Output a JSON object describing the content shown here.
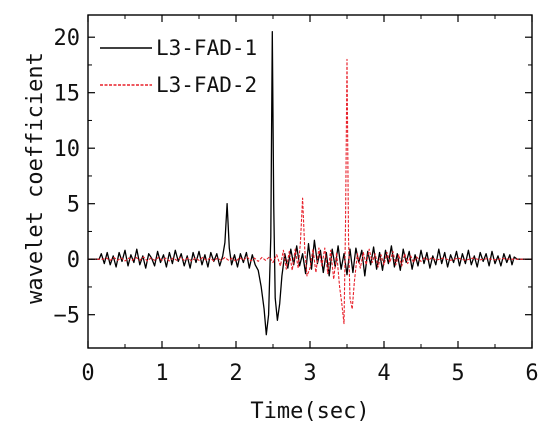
{
  "chart_data": {
    "type": "line",
    "title": "",
    "xlabel": "Time(sec)",
    "ylabel": "wavelet coefficient",
    "xlim": [
      0,
      6
    ],
    "ylim": [
      -8,
      22
    ],
    "xticks": [
      0,
      1,
      2,
      3,
      4,
      5,
      6
    ],
    "yticks": [
      -5,
      0,
      5,
      10,
      15,
      20
    ],
    "ytick_labels": [
      "−5",
      "0",
      "5",
      "10",
      "15",
      "20"
    ],
    "grid": false,
    "legend_position": "top-left",
    "series": [
      {
        "name": "L3-FAD-1",
        "color": "#000000",
        "style": "solid",
        "points": [
          [
            0.0,
            0.0
          ],
          [
            0.15,
            0.0
          ],
          [
            0.18,
            0.5
          ],
          [
            0.22,
            -0.4
          ],
          [
            0.26,
            0.6
          ],
          [
            0.3,
            -0.5
          ],
          [
            0.34,
            0.3
          ],
          [
            0.38,
            -0.7
          ],
          [
            0.42,
            0.6
          ],
          [
            0.46,
            -0.2
          ],
          [
            0.5,
            0.8
          ],
          [
            0.54,
            -0.6
          ],
          [
            0.58,
            0.4
          ],
          [
            0.62,
            -0.3
          ],
          [
            0.66,
            0.9
          ],
          [
            0.7,
            -0.5
          ],
          [
            0.74,
            0.3
          ],
          [
            0.78,
            -0.8
          ],
          [
            0.82,
            0.5
          ],
          [
            0.86,
            0.1
          ],
          [
            0.9,
            -0.6
          ],
          [
            0.94,
            0.7
          ],
          [
            0.98,
            -0.3
          ],
          [
            1.02,
            0.4
          ],
          [
            1.06,
            -0.7
          ],
          [
            1.1,
            0.6
          ],
          [
            1.14,
            -0.4
          ],
          [
            1.18,
            0.8
          ],
          [
            1.22,
            -0.2
          ],
          [
            1.26,
            0.5
          ],
          [
            1.3,
            -0.6
          ],
          [
            1.34,
            0.3
          ],
          [
            1.38,
            -0.8
          ],
          [
            1.42,
            0.6
          ],
          [
            1.46,
            -0.3
          ],
          [
            1.5,
            0.7
          ],
          [
            1.54,
            -0.5
          ],
          [
            1.58,
            0.4
          ],
          [
            1.62,
            -0.7
          ],
          [
            1.66,
            0.6
          ],
          [
            1.7,
            -0.2
          ],
          [
            1.74,
            0.5
          ],
          [
            1.78,
            -0.6
          ],
          [
            1.82,
            0.3
          ],
          [
            1.85,
            1.5
          ],
          [
            1.88,
            5.0
          ],
          [
            1.91,
            1.0
          ],
          [
            1.94,
            -0.5
          ],
          [
            1.98,
            0.4
          ],
          [
            2.02,
            -0.7
          ],
          [
            2.06,
            0.5
          ],
          [
            2.1,
            -0.3
          ],
          [
            2.14,
            0.6
          ],
          [
            2.18,
            -0.8
          ],
          [
            2.22,
            0.4
          ],
          [
            2.26,
            -0.5
          ],
          [
            2.3,
            -1.0
          ],
          [
            2.34,
            -2.5
          ],
          [
            2.38,
            -4.5
          ],
          [
            2.41,
            -6.8
          ],
          [
            2.44,
            -5.0
          ],
          [
            2.47,
            2.0
          ],
          [
            2.49,
            20.5
          ],
          [
            2.51,
            5.0
          ],
          [
            2.53,
            -3.5
          ],
          [
            2.56,
            -5.5
          ],
          [
            2.59,
            -4.0
          ],
          [
            2.62,
            -1.5
          ],
          [
            2.66,
            0.5
          ],
          [
            2.7,
            -0.8
          ],
          [
            2.74,
            0.9
          ],
          [
            2.78,
            -0.5
          ],
          [
            2.82,
            1.2
          ],
          [
            2.86,
            -0.6
          ],
          [
            2.9,
            0.5
          ],
          [
            2.94,
            -1.3
          ],
          [
            2.98,
            1.4
          ],
          [
            3.02,
            -0.9
          ],
          [
            3.06,
            1.7
          ],
          [
            3.1,
            -0.4
          ],
          [
            3.14,
            0.8
          ],
          [
            3.18,
            -1.2
          ],
          [
            3.22,
            0.6
          ],
          [
            3.26,
            -1.5
          ],
          [
            3.3,
            0.9
          ],
          [
            3.34,
            -0.7
          ],
          [
            3.38,
            1.2
          ],
          [
            3.42,
            -0.9
          ],
          [
            3.46,
            0.5
          ],
          [
            3.5,
            -1.4
          ],
          [
            3.54,
            0.9
          ],
          [
            3.58,
            -1.2
          ],
          [
            3.62,
            1.0
          ],
          [
            3.66,
            -0.3
          ],
          [
            3.7,
            0.8
          ],
          [
            3.74,
            -1.5
          ],
          [
            3.78,
            0.7
          ],
          [
            3.82,
            -0.5
          ],
          [
            3.86,
            1.1
          ],
          [
            3.9,
            -0.9
          ],
          [
            3.94,
            0.6
          ],
          [
            3.98,
            -1.0
          ],
          [
            4.02,
            0.8
          ],
          [
            4.06,
            -0.4
          ],
          [
            4.1,
            1.2
          ],
          [
            4.14,
            -0.7
          ],
          [
            4.18,
            0.5
          ],
          [
            4.22,
            -1.0
          ],
          [
            4.26,
            0.9
          ],
          [
            4.3,
            -0.3
          ],
          [
            4.34,
            0.7
          ],
          [
            4.38,
            -0.9
          ],
          [
            4.42,
            0.4
          ],
          [
            4.46,
            -0.6
          ],
          [
            4.5,
            0.8
          ],
          [
            4.54,
            -0.4
          ],
          [
            4.58,
            0.6
          ],
          [
            4.62,
            -0.8
          ],
          [
            4.66,
            0.3
          ],
          [
            4.7,
            -0.5
          ],
          [
            4.74,
            0.9
          ],
          [
            4.78,
            -0.4
          ],
          [
            4.82,
            0.6
          ],
          [
            4.86,
            -0.7
          ],
          [
            4.9,
            0.4
          ],
          [
            4.94,
            -0.3
          ],
          [
            4.98,
            0.7
          ],
          [
            5.02,
            -0.6
          ],
          [
            5.06,
            0.5
          ],
          [
            5.1,
            -0.4
          ],
          [
            5.14,
            0.8
          ],
          [
            5.18,
            -0.5
          ],
          [
            5.22,
            0.3
          ],
          [
            5.26,
            -0.7
          ],
          [
            5.3,
            0.6
          ],
          [
            5.34,
            -0.2
          ],
          [
            5.38,
            0.5
          ],
          [
            5.42,
            -0.6
          ],
          [
            5.46,
            0.7
          ],
          [
            5.5,
            -0.4
          ],
          [
            5.54,
            0.3
          ],
          [
            5.58,
            -0.6
          ],
          [
            5.62,
            0.5
          ],
          [
            5.66,
            -0.3
          ],
          [
            5.7,
            0.4
          ],
          [
            5.73,
            -0.5
          ],
          [
            5.76,
            0.2
          ],
          [
            5.8,
            0.0
          ],
          [
            6.0,
            0.0
          ]
        ]
      },
      {
        "name": "L3-FAD-2",
        "color": "#e8202a",
        "style": "dashed",
        "points": [
          [
            0.0,
            0.0
          ],
          [
            0.2,
            0.0
          ],
          [
            0.25,
            0.1
          ],
          [
            0.3,
            -0.1
          ],
          [
            0.35,
            0.15
          ],
          [
            0.4,
            -0.1
          ],
          [
            0.45,
            0.1
          ],
          [
            0.5,
            -0.15
          ],
          [
            0.55,
            0.1
          ],
          [
            0.6,
            -0.1
          ],
          [
            0.65,
            0.15
          ],
          [
            0.7,
            -0.1
          ],
          [
            0.75,
            0.2
          ],
          [
            0.8,
            -0.15
          ],
          [
            0.85,
            0.1
          ],
          [
            0.9,
            -0.1
          ],
          [
            0.95,
            0.15
          ],
          [
            1.0,
            -0.1
          ],
          [
            1.05,
            0.1
          ],
          [
            1.1,
            -0.15
          ],
          [
            1.15,
            0.1
          ],
          [
            1.2,
            -0.1
          ],
          [
            1.25,
            0.15
          ],
          [
            1.3,
            -0.1
          ],
          [
            1.35,
            0.1
          ],
          [
            1.4,
            -0.15
          ],
          [
            1.45,
            0.1
          ],
          [
            1.5,
            -0.1
          ],
          [
            1.55,
            0.15
          ],
          [
            1.6,
            -0.1
          ],
          [
            1.65,
            0.1
          ],
          [
            1.7,
            -0.15
          ],
          [
            1.75,
            0.1
          ],
          [
            1.8,
            -0.1
          ],
          [
            1.85,
            0.15
          ],
          [
            1.9,
            -0.1
          ],
          [
            1.95,
            0.1
          ],
          [
            2.0,
            -0.2
          ],
          [
            2.05,
            0.15
          ],
          [
            2.1,
            -0.1
          ],
          [
            2.15,
            0.2
          ],
          [
            2.2,
            -0.15
          ],
          [
            2.25,
            0.1
          ],
          [
            2.3,
            -0.2
          ],
          [
            2.35,
            0.15
          ],
          [
            2.4,
            -0.1
          ],
          [
            2.45,
            0.2
          ],
          [
            2.5,
            -0.3
          ],
          [
            2.55,
            0.4
          ],
          [
            2.6,
            -0.6
          ],
          [
            2.64,
            0.8
          ],
          [
            2.68,
            -0.9
          ],
          [
            2.72,
            0.7
          ],
          [
            2.76,
            -1.0
          ],
          [
            2.8,
            0.9
          ],
          [
            2.84,
            -0.8
          ],
          [
            2.87,
            1.5
          ],
          [
            2.9,
            5.5
          ],
          [
            2.93,
            0.8
          ],
          [
            2.96,
            -1.5
          ],
          [
            3.0,
            -0.8
          ],
          [
            3.04,
            0.9
          ],
          [
            3.08,
            -1.2
          ],
          [
            3.12,
            1.0
          ],
          [
            3.16,
            -0.6
          ],
          [
            3.2,
            1.0
          ],
          [
            3.24,
            -1.3
          ],
          [
            3.28,
            0.8
          ],
          [
            3.32,
            -1.8
          ],
          [
            3.36,
            0.6
          ],
          [
            3.4,
            -2.5
          ],
          [
            3.43,
            -4.0
          ],
          [
            3.46,
            -5.8
          ],
          [
            3.48,
            3.0
          ],
          [
            3.5,
            18.0
          ],
          [
            3.52,
            2.0
          ],
          [
            3.54,
            -3.5
          ],
          [
            3.57,
            -4.5
          ],
          [
            3.6,
            -2.0
          ],
          [
            3.64,
            0.5
          ],
          [
            3.68,
            -0.8
          ],
          [
            3.72,
            0.6
          ],
          [
            3.76,
            -0.5
          ],
          [
            3.8,
            0.9
          ],
          [
            3.84,
            -0.3
          ],
          [
            3.88,
            0.5
          ],
          [
            3.92,
            -0.7
          ],
          [
            3.96,
            0.4
          ],
          [
            4.0,
            -0.5
          ],
          [
            4.04,
            0.6
          ],
          [
            4.08,
            -0.3
          ],
          [
            4.12,
            0.7
          ],
          [
            4.16,
            -0.5
          ],
          [
            4.2,
            0.4
          ],
          [
            4.24,
            -0.6
          ],
          [
            4.28,
            0.5
          ],
          [
            4.32,
            -0.4
          ],
          [
            4.36,
            0.3
          ],
          [
            4.4,
            -0.3
          ],
          [
            4.44,
            0.2
          ],
          [
            4.5,
            -0.2
          ],
          [
            4.55,
            0.15
          ],
          [
            4.6,
            -0.1
          ],
          [
            4.65,
            0.15
          ],
          [
            4.7,
            -0.1
          ],
          [
            4.8,
            0.1
          ],
          [
            4.9,
            -0.1
          ],
          [
            5.0,
            0.1
          ],
          [
            5.1,
            -0.1
          ],
          [
            5.2,
            0.1
          ],
          [
            5.3,
            -0.05
          ],
          [
            5.4,
            0.05
          ],
          [
            5.5,
            -0.05
          ],
          [
            5.6,
            0.05
          ],
          [
            5.7,
            0.0
          ],
          [
            6.0,
            0.0
          ]
        ]
      }
    ]
  }
}
